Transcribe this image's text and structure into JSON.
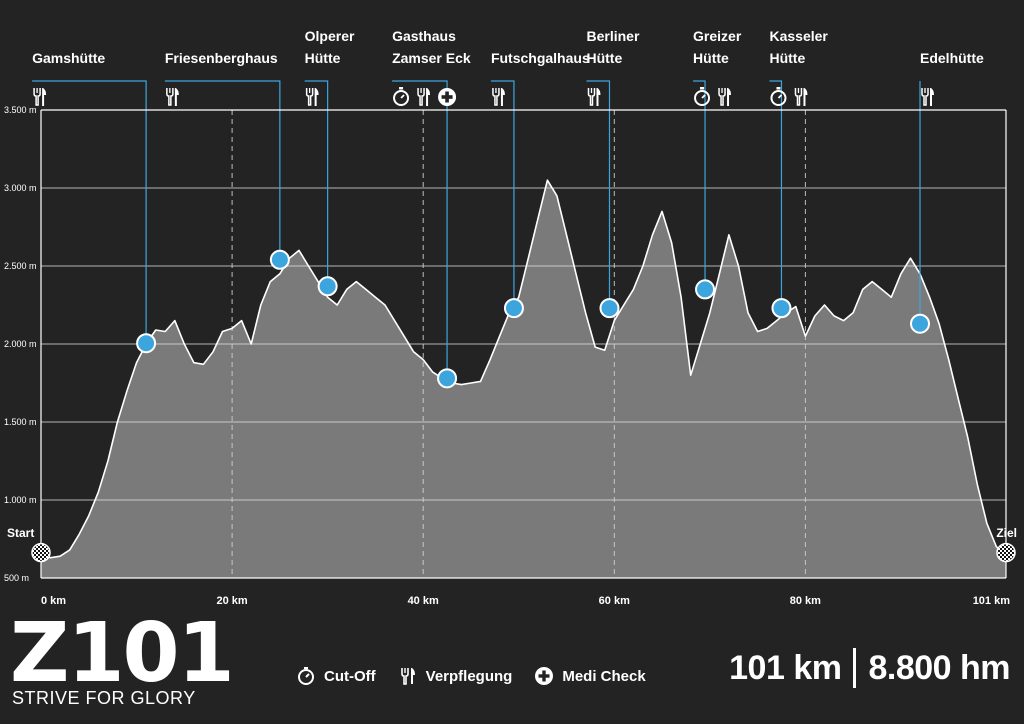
{
  "chart_data": {
    "type": "area",
    "xlabel": "",
    "ylabel": "",
    "xlim": [
      0,
      101
    ],
    "ylim": [
      500,
      3500
    ],
    "x_ticks": [
      {
        "value": 0,
        "label": "0 km"
      },
      {
        "value": 20,
        "label": "20 km"
      },
      {
        "value": 40,
        "label": "40 km"
      },
      {
        "value": 60,
        "label": "60 km"
      },
      {
        "value": 80,
        "label": "80 km"
      },
      {
        "value": 101,
        "label": "101 km"
      }
    ],
    "y_ticks": [
      {
        "value": 3500,
        "label": "3.500 m"
      },
      {
        "value": 3000,
        "label": "3.000 m"
      },
      {
        "value": 2500,
        "label": "2.500 m"
      },
      {
        "value": 2000,
        "label": "2.000 m"
      },
      {
        "value": 1500,
        "label": "1.500 m"
      },
      {
        "value": 1000,
        "label": "1.000 m"
      },
      {
        "value": 500,
        "label": "500 m"
      }
    ],
    "grid": true,
    "profile": [
      [
        0,
        650
      ],
      [
        1,
        630
      ],
      [
        2,
        640
      ],
      [
        3,
        680
      ],
      [
        4,
        780
      ],
      [
        5,
        900
      ],
      [
        6,
        1050
      ],
      [
        7,
        1250
      ],
      [
        8,
        1500
      ],
      [
        9,
        1700
      ],
      [
        10,
        1880
      ],
      [
        11,
        2000
      ],
      [
        12,
        2090
      ],
      [
        13,
        2080
      ],
      [
        14,
        2150
      ],
      [
        15,
        2000
      ],
      [
        16,
        1880
      ],
      [
        17,
        1870
      ],
      [
        18,
        1950
      ],
      [
        19,
        2080
      ],
      [
        20,
        2100
      ],
      [
        21,
        2150
      ],
      [
        22,
        2000
      ],
      [
        23,
        2250
      ],
      [
        24,
        2400
      ],
      [
        25,
        2450
      ],
      [
        26,
        2550
      ],
      [
        27,
        2600
      ],
      [
        28,
        2500
      ],
      [
        29,
        2400
      ],
      [
        30,
        2300
      ],
      [
        31,
        2250
      ],
      [
        32,
        2350
      ],
      [
        33,
        2400
      ],
      [
        34,
        2350
      ],
      [
        35,
        2300
      ],
      [
        36,
        2250
      ],
      [
        37,
        2150
      ],
      [
        38,
        2050
      ],
      [
        39,
        1950
      ],
      [
        40,
        1900
      ],
      [
        41,
        1820
      ],
      [
        42,
        1780
      ],
      [
        43,
        1750
      ],
      [
        44,
        1740
      ],
      [
        45,
        1750
      ],
      [
        46,
        1760
      ],
      [
        47,
        1900
      ],
      [
        48,
        2050
      ],
      [
        49,
        2200
      ],
      [
        50,
        2300
      ],
      [
        51,
        2550
      ],
      [
        52,
        2800
      ],
      [
        53,
        3050
      ],
      [
        54,
        2950
      ],
      [
        55,
        2700
      ],
      [
        56,
        2450
      ],
      [
        57,
        2200
      ],
      [
        58,
        1980
      ],
      [
        59,
        1960
      ],
      [
        60,
        2150
      ],
      [
        61,
        2250
      ],
      [
        62,
        2350
      ],
      [
        63,
        2500
      ],
      [
        64,
        2700
      ],
      [
        65,
        2850
      ],
      [
        66,
        2650
      ],
      [
        67,
        2300
      ],
      [
        68,
        1800
      ],
      [
        69,
        2000
      ],
      [
        70,
        2200
      ],
      [
        71,
        2450
      ],
      [
        72,
        2700
      ],
      [
        73,
        2500
      ],
      [
        74,
        2200
      ],
      [
        75,
        2080
      ],
      [
        76,
        2100
      ],
      [
        77,
        2150
      ],
      [
        78,
        2200
      ],
      [
        79,
        2240
      ],
      [
        80,
        2050
      ],
      [
        81,
        2180
      ],
      [
        82,
        2250
      ],
      [
        83,
        2180
      ],
      [
        84,
        2150
      ],
      [
        85,
        2200
      ],
      [
        86,
        2350
      ],
      [
        87,
        2400
      ],
      [
        88,
        2350
      ],
      [
        89,
        2300
      ],
      [
        90,
        2450
      ],
      [
        91,
        2550
      ],
      [
        92,
        2450
      ],
      [
        93,
        2300
      ],
      [
        94,
        2130
      ],
      [
        95,
        1900
      ],
      [
        96,
        1650
      ],
      [
        97,
        1400
      ],
      [
        98,
        1100
      ],
      [
        99,
        850
      ],
      [
        100,
        700
      ],
      [
        101,
        650
      ]
    ],
    "stations": [
      {
        "name": [
          "Gamshütte"
        ],
        "km": 11,
        "elev": 2005,
        "icons": [
          "food"
        ]
      },
      {
        "name": [
          "Friesenberghaus"
        ],
        "km": 25,
        "elev": 2540,
        "icons": [
          "food"
        ]
      },
      {
        "name": [
          "Olperer",
          "Hütte"
        ],
        "km": 30,
        "elev": 2370,
        "icons": [
          "food"
        ]
      },
      {
        "name": [
          "Gasthaus",
          "Zamser Eck"
        ],
        "km": 42.5,
        "elev": 1780,
        "icons": [
          "cutoff",
          "food",
          "medic"
        ]
      },
      {
        "name": [
          "Futschgalhaus"
        ],
        "km": 49.5,
        "elev": 2230,
        "icons": [
          "food"
        ]
      },
      {
        "name": [
          "Berliner",
          "Hütte"
        ],
        "km": 59.5,
        "elev": 2230,
        "icons": [
          "food"
        ]
      },
      {
        "name": [
          "Greizer",
          "Hütte"
        ],
        "km": 69.5,
        "elev": 2350,
        "icons": [
          "cutoff",
          "food"
        ]
      },
      {
        "name": [
          "Kasseler",
          "Hütte"
        ],
        "km": 77.5,
        "elev": 2230,
        "icons": [
          "cutoff",
          "food"
        ]
      },
      {
        "name": [
          "Edelhütte"
        ],
        "km": 92,
        "elev": 2130,
        "icons": [
          "food"
        ]
      }
    ],
    "start_label": "Start",
    "finish_label": "Ziel"
  },
  "legend": {
    "cutoff": "Cut-Off",
    "food": "Verpflegung",
    "medic": "Medi Check"
  },
  "logo": {
    "mark": "Z101",
    "tagline": "STRIVE FOR GLORY"
  },
  "summary": {
    "distance": "101 km",
    "elevation": "8.800 hm"
  },
  "colors": {
    "background": "#232323",
    "area_fill": "#7a7a7a",
    "marker": "#3da5dd",
    "line": "#ffffff"
  }
}
